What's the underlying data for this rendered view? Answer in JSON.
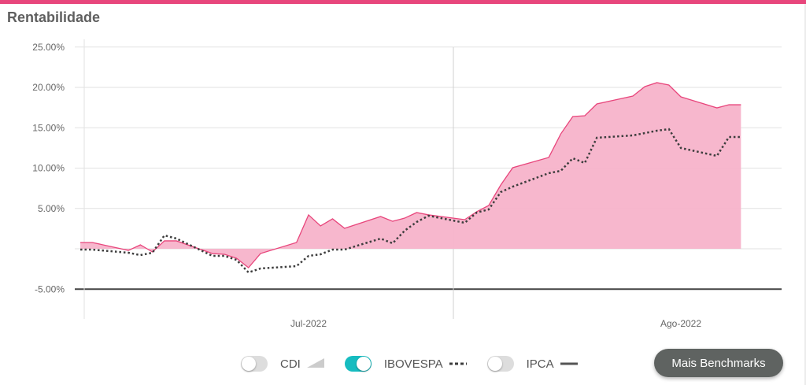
{
  "header": {
    "title": "Rentabilidade"
  },
  "colors": {
    "accent": "#e8467c",
    "area_fill": "#f7b3ca",
    "ibovespa_line": "#3d3d3d",
    "toggle_on": "#16bcc0",
    "button_bg": "#5f6361"
  },
  "legend": {
    "items": [
      {
        "label": "CDI",
        "enabled": false,
        "symbol": "triangle-area"
      },
      {
        "label": "IBOVESPA",
        "enabled": true,
        "symbol": "dotted-line"
      },
      {
        "label": "IPCA",
        "enabled": false,
        "symbol": "solid-line"
      }
    ],
    "more_button": "Mais Benchmarks"
  },
  "chart_data": {
    "type": "area",
    "xlabel": "",
    "ylabel": "",
    "x_ticks": [
      "Jul-2022",
      "Ago-2022"
    ],
    "y_ticks": [
      "25.00%",
      "20.00%",
      "15.00%",
      "10.00%",
      "5.00%",
      "",
      "-5.00%"
    ],
    "y_tick_values": [
      25,
      20,
      15,
      10,
      5,
      0,
      -5
    ],
    "ylim": [
      -5,
      25
    ],
    "grid": true,
    "x": [
      "2022-06-09",
      "2022-06-10",
      "2022-06-13",
      "2022-06-14",
      "2022-06-15",
      "2022-06-16",
      "2022-06-17",
      "2022-06-20",
      "2022-06-21",
      "2022-06-22",
      "2022-06-23",
      "2022-06-24",
      "2022-06-27",
      "2022-06-28",
      "2022-06-29",
      "2022-06-30",
      "2022-07-01",
      "2022-07-04",
      "2022-07-05",
      "2022-07-06",
      "2022-07-07",
      "2022-07-08",
      "2022-07-11",
      "2022-07-12",
      "2022-07-13",
      "2022-07-14",
      "2022-07-15",
      "2022-07-18",
      "2022-07-19",
      "2022-07-20",
      "2022-07-21",
      "2022-07-22",
      "2022-07-25",
      "2022-07-26",
      "2022-07-27",
      "2022-07-28",
      "2022-07-29",
      "2022-08-01",
      "2022-08-02",
      "2022-08-03"
    ],
    "series": [
      {
        "style": "area",
        "values": [
          0.78,
          0.78,
          -0.2,
          0.49,
          -0.39,
          0.98,
          0.98,
          -0.59,
          -0.68,
          -1.17,
          -2.34,
          -0.59,
          0.78,
          4.2,
          2.83,
          3.71,
          2.54,
          4.0,
          3.41,
          3.8,
          4.49,
          4.2,
          3.61,
          4.59,
          5.37,
          7.9,
          10.05,
          11.32,
          14.24,
          16.39,
          16.49,
          17.95,
          18.93,
          20.1,
          20.59,
          20.29,
          18.83,
          17.46,
          17.85,
          17.85
        ]
      },
      {
        "name": "IBOVESPA",
        "style": "dotted",
        "values": [
          -0.1,
          -0.1,
          -0.49,
          -0.78,
          -0.49,
          1.66,
          1.27,
          -0.88,
          -0.88,
          -1.37,
          -2.93,
          -2.44,
          -2.15,
          -0.88,
          -0.68,
          -0.1,
          -0.1,
          1.27,
          0.68,
          2.24,
          3.32,
          4.1,
          3.22,
          4.49,
          4.88,
          7.02,
          7.7,
          9.37,
          9.66,
          11.22,
          10.63,
          13.76,
          14.05,
          14.34,
          14.63,
          14.83,
          12.49,
          11.51,
          13.85,
          13.85
        ]
      }
    ]
  }
}
